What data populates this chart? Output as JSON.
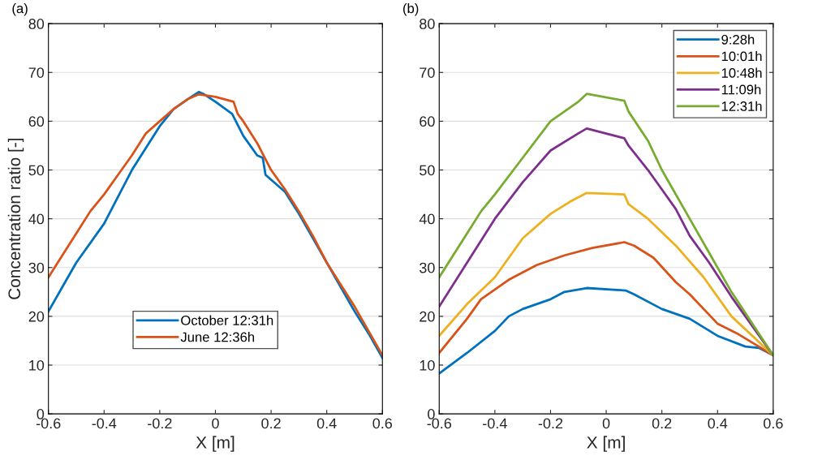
{
  "chart_data": [
    {
      "type": "line",
      "title": "(a)",
      "xlabel": "X [m]",
      "ylabel": "Concentration ratio [-]",
      "xlim": [
        -0.6,
        0.6
      ],
      "ylim": [
        0,
        80
      ],
      "xticks": [
        -0.6,
        -0.4,
        -0.2,
        0,
        0.2,
        0.4,
        0.6
      ],
      "yticks": [
        0,
        10,
        20,
        30,
        40,
        50,
        60,
        70,
        80
      ],
      "grid": "y",
      "legend": "bottom",
      "line_style": "solid",
      "series": [
        {
          "name": "October 12:31h",
          "color": "#0072bd",
          "x": [
            -0.6,
            -0.55,
            -0.5,
            -0.4,
            -0.3,
            -0.2,
            -0.15,
            -0.1,
            -0.06,
            -0.04,
            0.0,
            0.06,
            0.1,
            0.15,
            0.17,
            0.18,
            0.25,
            0.3,
            0.35,
            0.45,
            0.5,
            0.55,
            0.6
          ],
          "values": [
            21,
            26,
            31,
            39,
            50,
            59,
            62.5,
            64.5,
            66,
            65.5,
            64,
            61.5,
            57,
            53,
            52.5,
            49,
            45.5,
            41,
            36,
            26,
            21,
            16.5,
            11.5
          ]
        },
        {
          "name": "June 12:36h",
          "color": "#d95319",
          "x": [
            -0.6,
            -0.55,
            -0.5,
            -0.45,
            -0.4,
            -0.35,
            -0.3,
            -0.25,
            -0.2,
            -0.15,
            -0.1,
            -0.06,
            0.0,
            0.065,
            0.08,
            0.1,
            0.15,
            0.2,
            0.25,
            0.3,
            0.35,
            0.4,
            0.45,
            0.5,
            0.55,
            0.6
          ],
          "values": [
            28,
            32.5,
            37,
            41.5,
            45,
            49,
            53,
            57.5,
            60,
            62.5,
            64.5,
            65.5,
            65,
            64,
            61.5,
            60,
            55.5,
            50,
            46,
            41.5,
            36.5,
            31,
            26.5,
            22,
            17,
            12
          ]
        }
      ]
    },
    {
      "type": "line",
      "title": "(b)",
      "xlabel": "X [m]",
      "xlim": [
        -0.6,
        0.6
      ],
      "ylim": [
        0,
        80
      ],
      "xticks": [
        -0.6,
        -0.4,
        -0.2,
        0,
        0.2,
        0.4,
        0.6
      ],
      "yticks": [
        0,
        10,
        20,
        30,
        40,
        50,
        60,
        70,
        80
      ],
      "grid": "y",
      "legend": "top right",
      "line_style": "solid",
      "series": [
        {
          "name": "9:28h",
          "color": "#0072bd",
          "x": [
            -0.6,
            -0.5,
            -0.4,
            -0.35,
            -0.3,
            -0.2,
            -0.15,
            -0.07,
            0.07,
            0.1,
            0.2,
            0.3,
            0.4,
            0.5,
            0.55,
            0.6
          ],
          "values": [
            8.3,
            12.5,
            17,
            20,
            21.5,
            23.5,
            25,
            25.8,
            25.3,
            24.5,
            21.5,
            19.5,
            16,
            13.8,
            13.5,
            12
          ]
        },
        {
          "name": "10:01h",
          "color": "#d95319",
          "x": [
            -0.6,
            -0.5,
            -0.45,
            -0.35,
            -0.25,
            -0.15,
            -0.05,
            0.065,
            0.1,
            0.17,
            0.25,
            0.3,
            0.4,
            0.47,
            0.6
          ],
          "values": [
            12.5,
            19.5,
            23.5,
            27.5,
            30.5,
            32.5,
            34,
            35.2,
            34.5,
            32,
            27,
            24.5,
            18.5,
            16.5,
            12
          ]
        },
        {
          "name": "10:48h",
          "color": "#edb120",
          "x": [
            -0.6,
            -0.5,
            -0.4,
            -0.3,
            -0.2,
            -0.13,
            -0.07,
            0.065,
            0.08,
            0.15,
            0.25,
            0.35,
            0.45,
            0.6
          ],
          "values": [
            16,
            22.5,
            28,
            36,
            41,
            43.5,
            45.3,
            45,
            43,
            40,
            34.5,
            28,
            20,
            12
          ]
        },
        {
          "name": "11:09h",
          "color": "#7e2f8e",
          "x": [
            -0.6,
            -0.5,
            -0.4,
            -0.3,
            -0.2,
            -0.1,
            -0.07,
            0.065,
            0.08,
            0.15,
            0.2,
            0.25,
            0.3,
            0.37,
            0.45,
            0.6
          ],
          "values": [
            22,
            31,
            40,
            47.5,
            54,
            57.5,
            58.5,
            56.5,
            55,
            50,
            46,
            42,
            36.5,
            31,
            24,
            12
          ]
        },
        {
          "name": "12:31h",
          "color": "#77ac30",
          "x": [
            -0.6,
            -0.5,
            -0.45,
            -0.4,
            -0.3,
            -0.2,
            -0.1,
            -0.07,
            0.065,
            0.08,
            0.15,
            0.2,
            0.3,
            0.37,
            0.45,
            0.6
          ],
          "values": [
            28,
            37,
            41.5,
            45,
            52.5,
            60,
            64,
            65.6,
            64.2,
            62,
            56,
            50,
            40,
            33,
            25,
            12
          ]
        }
      ]
    }
  ]
}
